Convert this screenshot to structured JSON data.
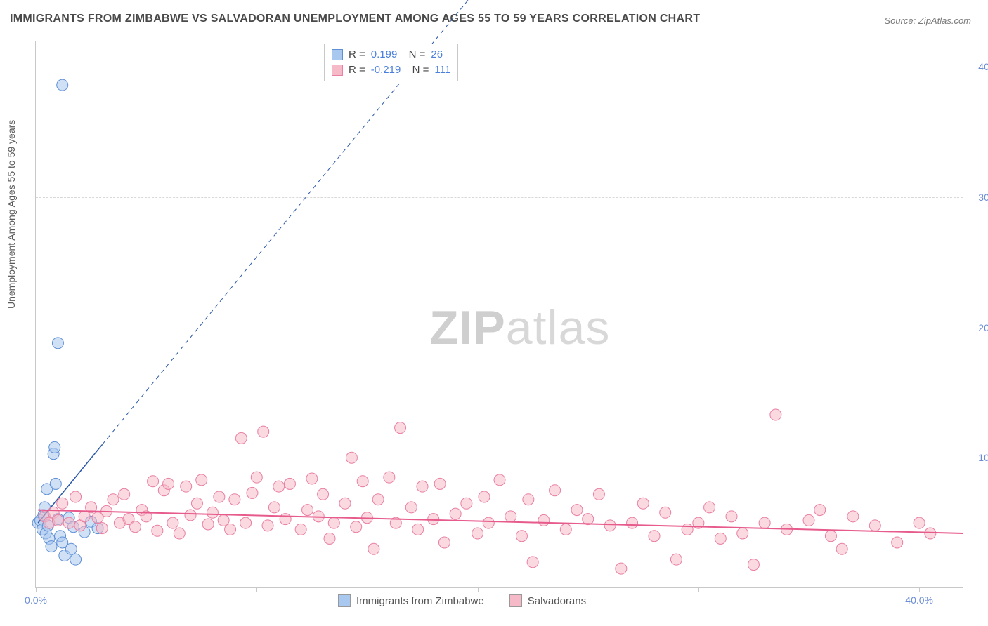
{
  "title": "IMMIGRANTS FROM ZIMBABWE VS SALVADORAN UNEMPLOYMENT AMONG AGES 55 TO 59 YEARS CORRELATION CHART",
  "source": "Source: ZipAtlas.com",
  "watermark_zip": "ZIP",
  "watermark_atlas": "atlas",
  "y_axis_label": "Unemployment Among Ages 55 to 59 years",
  "chart": {
    "type": "scatter",
    "background_color": "#ffffff",
    "grid_color": "#d8d8d8",
    "axis_color": "#c8c8c8",
    "xlim": [
      0,
      42
    ],
    "ylim": [
      0,
      42
    ],
    "x_ticks": [
      0,
      10,
      20,
      30,
      40
    ],
    "x_tick_labels": [
      "0.0%",
      "",
      "",
      "",
      "40.0%"
    ],
    "y_ticks": [
      10,
      20,
      30,
      40
    ],
    "y_tick_labels": [
      "10.0%",
      "20.0%",
      "30.0%",
      "40.0%"
    ],
    "marker_radius": 8,
    "marker_opacity": 0.55,
    "series": [
      {
        "name": "Immigrants from Zimbabwe",
        "color_fill": "#a9c8ef",
        "color_stroke": "#5f90d6",
        "R": "0.199",
        "N": "26",
        "trend": {
          "x1": 0.1,
          "y1": 5.0,
          "x2": 3.0,
          "y2": 11.0,
          "extend_x2": 20.0,
          "extend_y2": 46.0,
          "color": "#2a57a5",
          "width": 1.5
        },
        "points": [
          [
            0.1,
            5.0
          ],
          [
            0.2,
            5.2
          ],
          [
            0.3,
            4.5
          ],
          [
            0.35,
            5.6
          ],
          [
            0.4,
            6.2
          ],
          [
            0.45,
            4.2
          ],
          [
            0.5,
            7.6
          ],
          [
            0.55,
            4.8
          ],
          [
            0.6,
            3.8
          ],
          [
            0.7,
            3.2
          ],
          [
            0.8,
            10.3
          ],
          [
            0.85,
            10.8
          ],
          [
            0.9,
            8.0
          ],
          [
            1.0,
            5.3
          ],
          [
            1.1,
            4.0
          ],
          [
            1.2,
            3.5
          ],
          [
            1.3,
            2.5
          ],
          [
            1.5,
            5.4
          ],
          [
            1.6,
            3.0
          ],
          [
            1.7,
            4.7
          ],
          [
            1.8,
            2.2
          ],
          [
            2.2,
            4.3
          ],
          [
            2.5,
            5.1
          ],
          [
            2.8,
            4.6
          ],
          [
            1.2,
            38.6
          ],
          [
            1.0,
            18.8
          ]
        ]
      },
      {
        "name": "Salvadorans",
        "color_fill": "#f6b9c7",
        "color_stroke": "#e97fa2",
        "R": "-0.219",
        "N": "111",
        "trend": {
          "x1": 0.1,
          "y1": 6.0,
          "x2": 42.0,
          "y2": 4.2,
          "color": "#e75a8c",
          "width": 2
        },
        "points": [
          [
            0.4,
            5.5
          ],
          [
            0.6,
            5.0
          ],
          [
            0.8,
            5.8
          ],
          [
            1.0,
            5.2
          ],
          [
            1.2,
            6.5
          ],
          [
            1.5,
            5.0
          ],
          [
            1.8,
            7.0
          ],
          [
            2.0,
            4.8
          ],
          [
            2.2,
            5.5
          ],
          [
            2.5,
            6.2
          ],
          [
            2.8,
            5.4
          ],
          [
            3.0,
            4.6
          ],
          [
            3.2,
            5.9
          ],
          [
            3.5,
            6.8
          ],
          [
            3.8,
            5.0
          ],
          [
            4.0,
            7.2
          ],
          [
            4.2,
            5.3
          ],
          [
            4.5,
            4.7
          ],
          [
            4.8,
            6.0
          ],
          [
            5.0,
            5.5
          ],
          [
            5.3,
            8.2
          ],
          [
            5.5,
            4.4
          ],
          [
            5.8,
            7.5
          ],
          [
            6.0,
            8.0
          ],
          [
            6.2,
            5.0
          ],
          [
            6.5,
            4.2
          ],
          [
            6.8,
            7.8
          ],
          [
            7.0,
            5.6
          ],
          [
            7.3,
            6.5
          ],
          [
            7.5,
            8.3
          ],
          [
            7.8,
            4.9
          ],
          [
            8.0,
            5.8
          ],
          [
            8.3,
            7.0
          ],
          [
            8.5,
            5.2
          ],
          [
            8.8,
            4.5
          ],
          [
            9.0,
            6.8
          ],
          [
            9.3,
            11.5
          ],
          [
            9.5,
            5.0
          ],
          [
            9.8,
            7.3
          ],
          [
            10.0,
            8.5
          ],
          [
            10.3,
            12.0
          ],
          [
            10.5,
            4.8
          ],
          [
            10.8,
            6.2
          ],
          [
            11.0,
            7.8
          ],
          [
            11.3,
            5.3
          ],
          [
            11.5,
            8.0
          ],
          [
            12.0,
            4.5
          ],
          [
            12.3,
            6.0
          ],
          [
            12.5,
            8.4
          ],
          [
            12.8,
            5.5
          ],
          [
            13.0,
            7.2
          ],
          [
            13.3,
            3.8
          ],
          [
            13.5,
            5.0
          ],
          [
            14.0,
            6.5
          ],
          [
            14.3,
            10.0
          ],
          [
            14.5,
            4.7
          ],
          [
            14.8,
            8.2
          ],
          [
            15.0,
            5.4
          ],
          [
            15.3,
            3.0
          ],
          [
            15.5,
            6.8
          ],
          [
            16.0,
            8.5
          ],
          [
            16.3,
            5.0
          ],
          [
            16.5,
            12.3
          ],
          [
            17.0,
            6.2
          ],
          [
            17.3,
            4.5
          ],
          [
            17.5,
            7.8
          ],
          [
            18.0,
            5.3
          ],
          [
            18.3,
            8.0
          ],
          [
            18.5,
            3.5
          ],
          [
            19.0,
            5.7
          ],
          [
            19.5,
            6.5
          ],
          [
            20.0,
            4.2
          ],
          [
            20.3,
            7.0
          ],
          [
            20.5,
            5.0
          ],
          [
            21.0,
            8.3
          ],
          [
            21.5,
            5.5
          ],
          [
            22.0,
            4.0
          ],
          [
            22.3,
            6.8
          ],
          [
            22.5,
            2.0
          ],
          [
            23.0,
            5.2
          ],
          [
            23.5,
            7.5
          ],
          [
            24.0,
            4.5
          ],
          [
            24.5,
            6.0
          ],
          [
            25.0,
            5.3
          ],
          [
            25.5,
            7.2
          ],
          [
            26.0,
            4.8
          ],
          [
            26.5,
            1.5
          ],
          [
            27.0,
            5.0
          ],
          [
            27.5,
            6.5
          ],
          [
            28.0,
            4.0
          ],
          [
            28.5,
            5.8
          ],
          [
            29.0,
            2.2
          ],
          [
            29.5,
            4.5
          ],
          [
            30.0,
            5.0
          ],
          [
            30.5,
            6.2
          ],
          [
            31.0,
            3.8
          ],
          [
            31.5,
            5.5
          ],
          [
            32.0,
            4.2
          ],
          [
            32.5,
            1.8
          ],
          [
            33.0,
            5.0
          ],
          [
            33.5,
            13.3
          ],
          [
            34.0,
            4.5
          ],
          [
            35.0,
            5.2
          ],
          [
            35.5,
            6.0
          ],
          [
            36.0,
            4.0
          ],
          [
            36.5,
            3.0
          ],
          [
            37.0,
            5.5
          ],
          [
            38.0,
            4.8
          ],
          [
            39.0,
            3.5
          ],
          [
            40.0,
            5.0
          ],
          [
            40.5,
            4.2
          ]
        ]
      }
    ]
  },
  "legend": {
    "items": [
      {
        "label": "Immigrants from Zimbabwe",
        "color": "#a9c8ef"
      },
      {
        "label": "Salvadorans",
        "color": "#f6b9c7"
      }
    ]
  }
}
